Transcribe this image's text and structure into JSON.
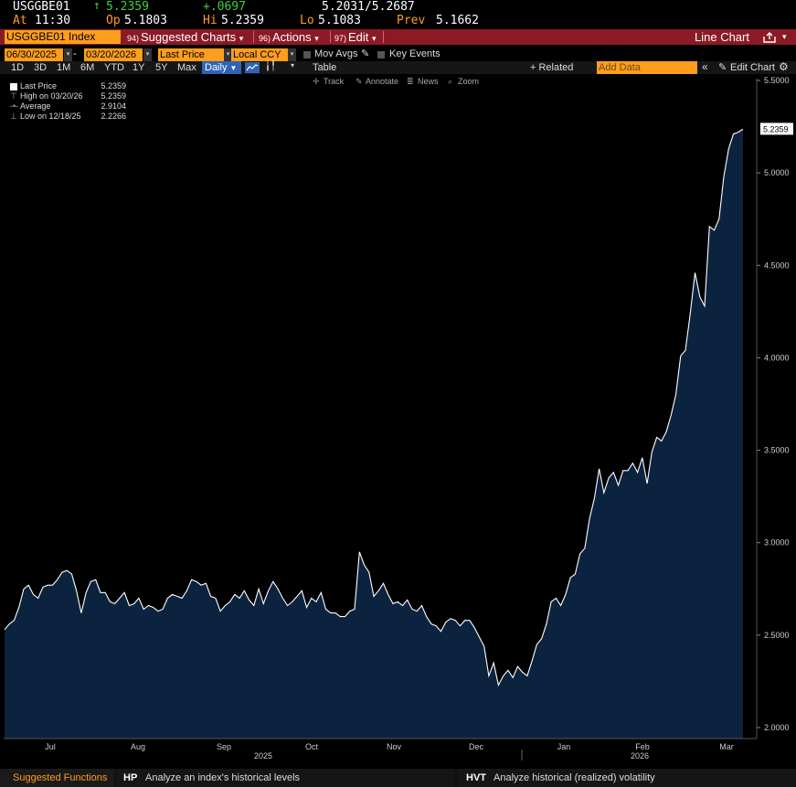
{
  "quote": {
    "ticker": "USGGBE01",
    "last_price": "5.2359",
    "change": "+.0697",
    "bid_ask": "5.2031/5.2687",
    "time_label": "At",
    "time": "11:30",
    "open_label": "Op",
    "open": "5.1803",
    "high_label": "Hi",
    "high": "5.2359",
    "low_label": "Lo",
    "low": "5.1083",
    "prev_label": "Prev",
    "prev": "5.1662"
  },
  "menubar": {
    "security": "USGGBE01 Index",
    "suggested_num": "94)",
    "suggested": "Suggested Charts",
    "actions_num": "96)",
    "actions": "Actions",
    "edit_num": "97)",
    "edit": "Edit",
    "chart_type": "Line Chart"
  },
  "options": {
    "start_date": "06/30/2025",
    "end_date": "03/20/2026",
    "field": "Last Price",
    "currency": "Local CCY",
    "mov_avgs": "Mov Avgs",
    "key_events": "Key Events"
  },
  "range": {
    "buttons": [
      "1D",
      "3D",
      "1M",
      "6M",
      "YTD",
      "1Y",
      "5Y",
      "Max"
    ],
    "frequency": "Daily",
    "table": "Table",
    "related": "+ Related Data",
    "add_data_placeholder": "Add Data",
    "edit_chart": "Edit Chart"
  },
  "tools": {
    "track": "Track",
    "annotate": "Annotate",
    "news": "News",
    "zoom": "Zoom"
  },
  "legend": {
    "items": [
      {
        "label": "Last Price",
        "value": "5.2359"
      },
      {
        "label": "High on 03/20/26",
        "value": "5.2359"
      },
      {
        "label": "Average",
        "value": "2.9104"
      },
      {
        "label": "Low on 12/18/25",
        "value": "2.2266"
      }
    ]
  },
  "bottom": {
    "suggested": "Suggested Functions",
    "f1_code": "HP",
    "f1_desc": "Analyze an index's historical levels",
    "f2_code": "HVT",
    "f2_desc": "Analyze historical (realized) volatility"
  },
  "colors": {
    "accent_orange": "#ff9d1c",
    "menubar_red": "#8b1a26",
    "area_fill": "#0c2340",
    "line": "#ffffff",
    "up_green": "#3fd13f"
  },
  "chart_data": {
    "type": "area",
    "series": [
      {
        "name": "Last Price",
        "x_start": "06/30/2025",
        "x_end": "03/20/2026",
        "values": [
          2.53,
          2.56,
          2.58,
          2.65,
          2.75,
          2.77,
          2.72,
          2.7,
          2.76,
          2.77,
          2.77,
          2.8,
          2.84,
          2.85,
          2.83,
          2.74,
          2.62,
          2.73,
          2.79,
          2.8,
          2.73,
          2.73,
          2.68,
          2.67,
          2.7,
          2.73,
          2.66,
          2.67,
          2.7,
          2.64,
          2.66,
          2.65,
          2.63,
          2.64,
          2.7,
          2.72,
          2.71,
          2.7,
          2.74,
          2.8,
          2.79,
          2.77,
          2.78,
          2.71,
          2.7,
          2.63,
          2.66,
          2.68,
          2.72,
          2.7,
          2.74,
          2.69,
          2.66,
          2.75,
          2.67,
          2.74,
          2.79,
          2.75,
          2.7,
          2.66,
          2.68,
          2.71,
          2.74,
          2.65,
          2.7,
          2.68,
          2.73,
          2.64,
          2.62,
          2.62,
          2.6,
          2.6,
          2.63,
          2.64,
          2.95,
          2.88,
          2.84,
          2.71,
          2.74,
          2.78,
          2.72,
          2.67,
          2.68,
          2.66,
          2.69,
          2.64,
          2.63,
          2.66,
          2.6,
          2.56,
          2.55,
          2.52,
          2.57,
          2.59,
          2.58,
          2.55,
          2.58,
          2.58,
          2.54,
          2.49,
          2.44,
          2.28,
          2.35,
          2.23,
          2.28,
          2.31,
          2.27,
          2.33,
          2.3,
          2.28,
          2.36,
          2.45,
          2.48,
          2.56,
          2.68,
          2.7,
          2.66,
          2.72,
          2.81,
          2.83,
          2.94,
          2.97,
          3.13,
          3.24,
          3.4,
          3.27,
          3.35,
          3.38,
          3.31,
          3.39,
          3.39,
          3.43,
          3.38,
          3.46,
          3.32,
          3.49,
          3.57,
          3.55,
          3.6,
          3.69,
          3.8,
          4.01,
          4.04,
          4.24,
          4.46,
          4.33,
          4.28,
          4.71,
          4.69,
          4.75,
          4.98,
          5.13,
          5.21,
          5.22,
          5.2359
        ]
      }
    ],
    "x_tick_labels": [
      "Jul",
      "Aug",
      "Sep",
      "Oct",
      "Nov",
      "Dec",
      "Jan",
      "Feb",
      "Mar"
    ],
    "x_year_labels": [
      "2025",
      "2026"
    ],
    "y_ticks": [
      2.0,
      2.5,
      3.0,
      3.5,
      4.0,
      4.5,
      5.0,
      5.5
    ],
    "y_tick_labels": [
      "2.0000",
      "2.5000",
      "3.0000",
      "3.5000",
      "4.0000",
      "4.5000",
      "5.0000",
      "5.5000"
    ],
    "ylim": [
      2.0,
      5.5
    ],
    "last_value_label": "5.2359",
    "grid": false,
    "legend_position": "top-left"
  }
}
